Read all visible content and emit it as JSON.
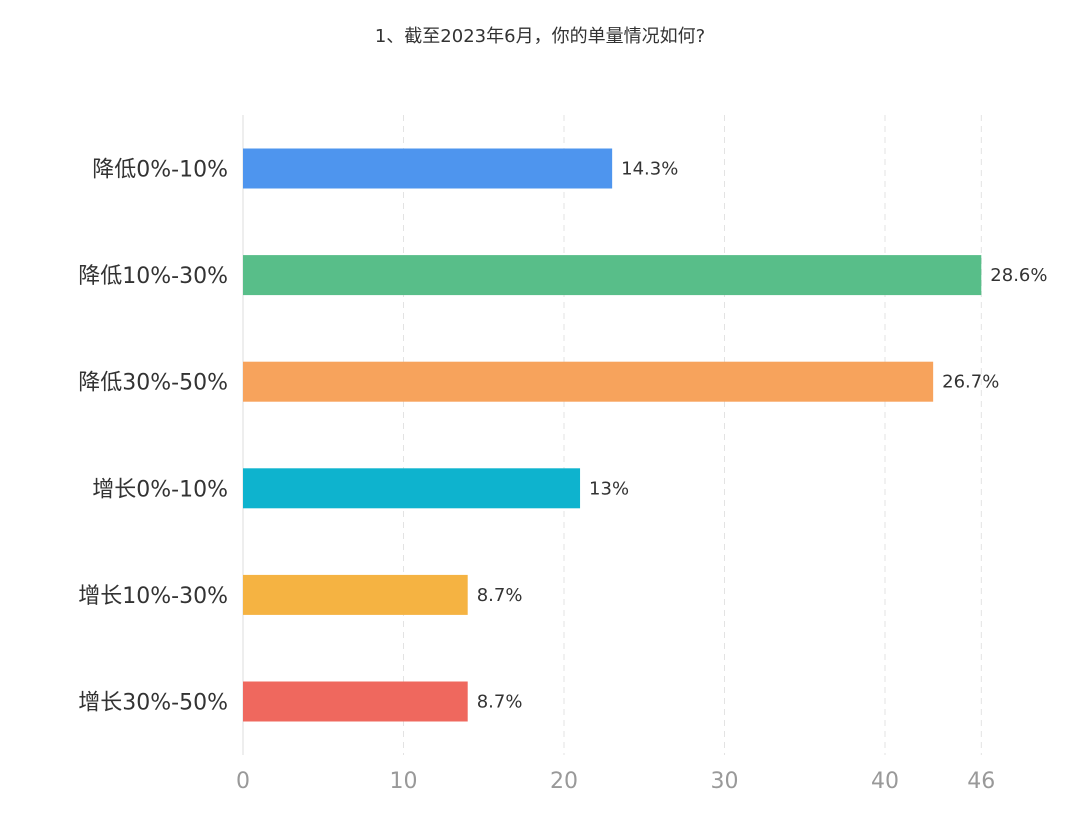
{
  "chart_data": {
    "type": "bar",
    "orientation": "horizontal",
    "title": "1、截至2023年6月，你的单量情况如何?",
    "categories": [
      "降低0%-10%",
      "降低10%-30%",
      "降低30%-50%",
      "增长0%-10%",
      "增长10%-30%",
      "增长30%-50%"
    ],
    "values": [
      23,
      46,
      43,
      21,
      14,
      14
    ],
    "data_labels": [
      "14.3%",
      "28.6%",
      "26.7%",
      "13%",
      "8.7%",
      "8.7%"
    ],
    "colors": [
      "#4E95EE",
      "#58BE89",
      "#F7A35C",
      "#0EB3CE",
      "#F5B342",
      "#EF685E"
    ],
    "xticks": [
      0,
      10,
      20,
      30,
      40,
      46
    ],
    "xlim": [
      0,
      46
    ],
    "grid": true,
    "legend": "none"
  }
}
